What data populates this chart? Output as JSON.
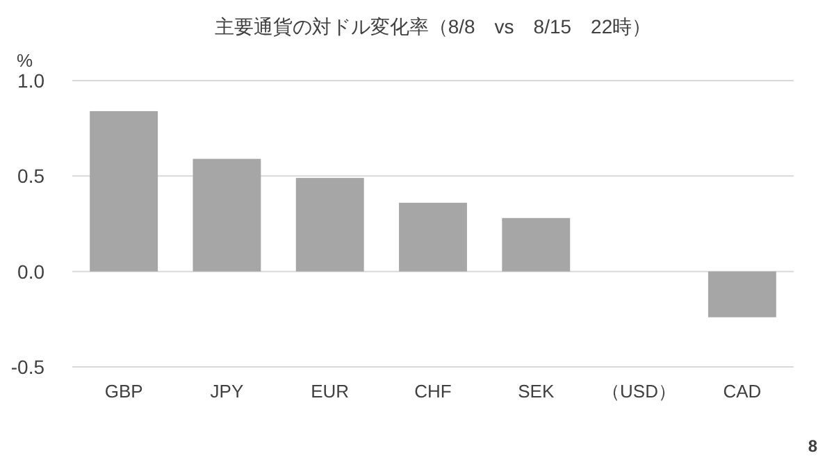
{
  "chart_data": {
    "type": "bar",
    "title": "主要通貨の対ドル変化率（8/8　vs　8/15　22時）",
    "ylabel": "%",
    "categories": [
      "GBP",
      "JPY",
      "EUR",
      "CHF",
      "SEK",
      "（USD）",
      "CAD"
    ],
    "values": [
      0.84,
      0.59,
      0.49,
      0.36,
      0.28,
      null,
      -0.24
    ],
    "color": "#a6a6a6",
    "ylim": [
      -0.5,
      1.0
    ],
    "yticks": [
      {
        "value": -0.5,
        "label": "-0.5"
      },
      {
        "value": 0,
        "label": "0.0"
      },
      {
        "value": 0.5,
        "label": "0.5"
      },
      {
        "value": 1.0,
        "label": "1.0"
      }
    ],
    "grid": "y",
    "annotations": [
      "8"
    ]
  }
}
